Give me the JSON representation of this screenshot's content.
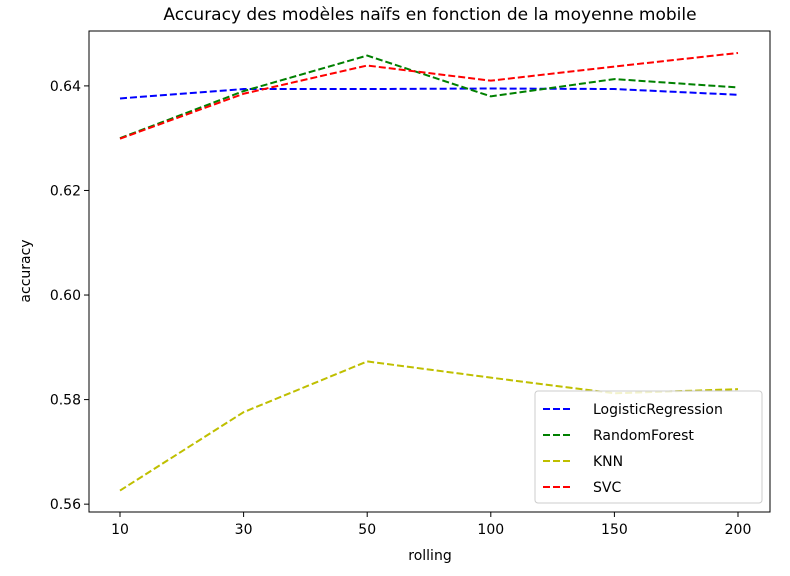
{
  "chart_data": {
    "type": "line",
    "title": "Accuracy des modèles naïfs en fonction de la moyenne mobile",
    "xlabel": "rolling",
    "ylabel": "accuracy",
    "categories": [
      "10",
      "30",
      "50",
      "100",
      "150",
      "200"
    ],
    "ylim": [
      0.5585,
      0.6505
    ],
    "yticks": [
      0.56,
      0.58,
      0.6,
      0.62,
      0.64
    ],
    "ytick_labels": [
      "0.56",
      "0.58",
      "0.60",
      "0.62",
      "0.64"
    ],
    "grid": false,
    "legend_position": "lower-right",
    "line_style": "dashed",
    "series": [
      {
        "name": "LogisticRegression",
        "color": "#0000ff",
        "values": [
          0.6376,
          0.6394,
          0.6394,
          0.6395,
          0.6394,
          0.6383
        ]
      },
      {
        "name": "RandomForest",
        "color": "#008000",
        "values": [
          0.63,
          0.639,
          0.6458,
          0.638,
          0.6413,
          0.6397
        ]
      },
      {
        "name": "KNN",
        "color": "#bfbf00",
        "values": [
          0.5626,
          0.5776,
          0.5873,
          0.5842,
          0.5812,
          0.582
        ]
      },
      {
        "name": "SVC",
        "color": "#ff0000",
        "values": [
          0.6299,
          0.6385,
          0.6439,
          0.641,
          0.6437,
          0.6463
        ]
      }
    ]
  }
}
